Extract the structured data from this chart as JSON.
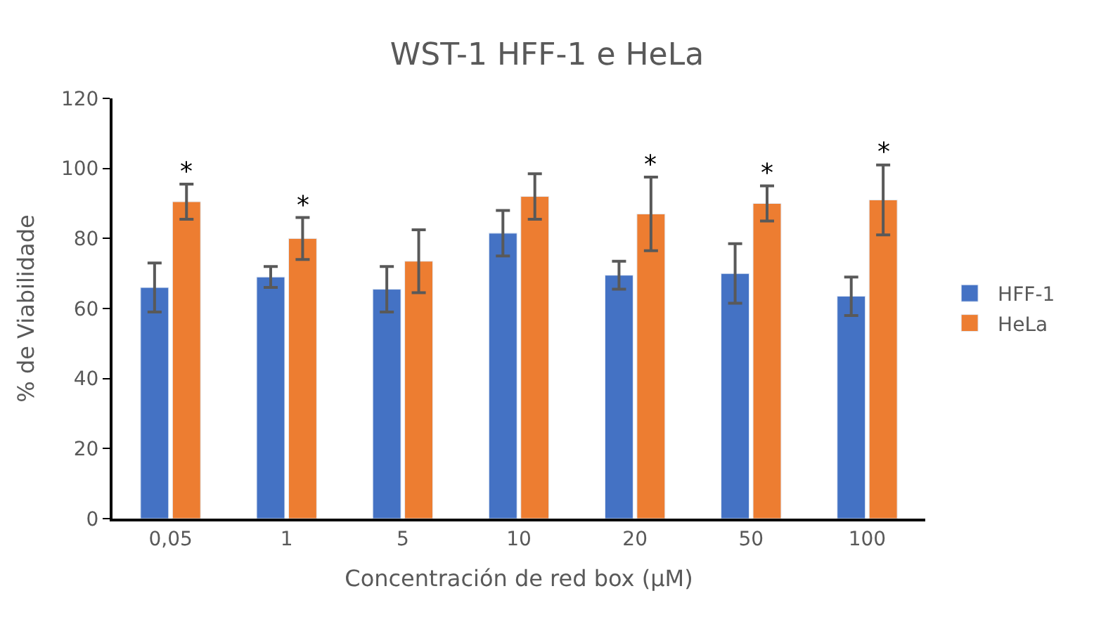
{
  "chart_data": {
    "type": "bar",
    "title": "WST-1 HFF-1 e HeLa",
    "xlabel": "Concentración de red box (µM)",
    "ylabel": "% de Viabilidade",
    "categories": [
      "0,05",
      "1",
      "5",
      "10",
      "20",
      "50",
      "100"
    ],
    "series": [
      {
        "name": "HFF-1",
        "color": "#4472c4",
        "values": [
          66,
          69,
          65.5,
          81.5,
          69.5,
          70,
          63.5
        ],
        "errors": [
          7,
          3,
          6.5,
          6.5,
          4,
          8.5,
          5.5
        ]
      },
      {
        "name": "HeLa",
        "color": "#ed7d31",
        "values": [
          90.5,
          80,
          73.5,
          92,
          87,
          90,
          91
        ],
        "errors": [
          5,
          6,
          9,
          6.5,
          10.5,
          5,
          10
        ]
      }
    ],
    "ylim": [
      0,
      120
    ],
    "yticks": [
      0,
      20,
      40,
      60,
      80,
      100,
      120
    ],
    "legend": "right",
    "annotations": [
      {
        "text": "*",
        "x": "0,05",
        "y": 90.5
      },
      {
        "text": "*",
        "x": "1",
        "y": 80
      },
      {
        "text": "*",
        "x": "20",
        "y": 87
      },
      {
        "text": "*",
        "x": "50",
        "y": 90
      },
      {
        "text": "*",
        "x": "100",
        "y": 91
      }
    ]
  }
}
